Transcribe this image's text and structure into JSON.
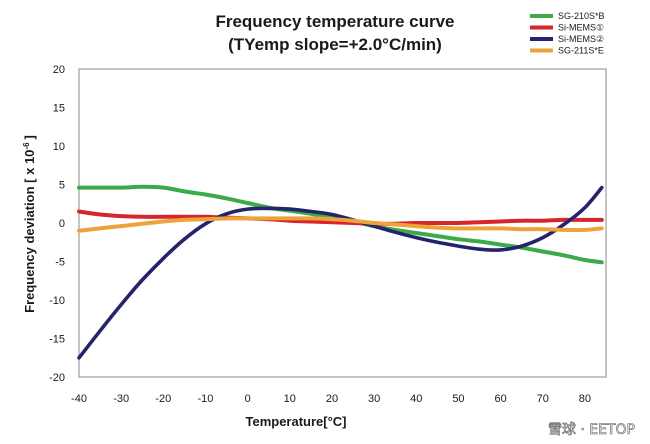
{
  "chart_data": {
    "type": "line",
    "title_lines": [
      "Frequency temperature curve",
      "(TYemp slope=+2.0°C/min)"
    ],
    "xlabel": "Temperature[°C]",
    "ylabel": "Frequency deviation [ x 10",
    "ylabel_exponent": "-6",
    "ylabel_suffix": "]",
    "xlim": [
      -40,
      85
    ],
    "ylim": [
      -20,
      20
    ],
    "xticks": [
      -40,
      -30,
      -20,
      -10,
      0,
      10,
      20,
      30,
      40,
      50,
      60,
      70,
      80
    ],
    "yticks": [
      -20,
      -15,
      -10,
      -5,
      0,
      5,
      10,
      15,
      20
    ],
    "grid": false,
    "legend_position": "top-right",
    "series": [
      {
        "name": "SG-210S*B",
        "color": "#3daa4a",
        "x": [
          -40,
          -35,
          -30,
          -25,
          -20,
          -15,
          -10,
          -5,
          0,
          5,
          10,
          15,
          20,
          25,
          30,
          35,
          40,
          45,
          50,
          55,
          60,
          65,
          70,
          75,
          80,
          84
        ],
        "y": [
          4.6,
          4.6,
          4.6,
          4.7,
          4.6,
          4.1,
          3.7,
          3.2,
          2.6,
          2.0,
          1.6,
          1.2,
          0.7,
          0.2,
          -0.4,
          -0.9,
          -1.3,
          -1.7,
          -2.1,
          -2.4,
          -2.8,
          -3.2,
          -3.7,
          -4.2,
          -4.8,
          -5.1
        ]
      },
      {
        "name": "Si-MEMS①",
        "color": "#d6262c",
        "x": [
          -40,
          -35,
          -30,
          -25,
          -20,
          -15,
          -10,
          -5,
          0,
          5,
          10,
          15,
          20,
          25,
          30,
          35,
          40,
          45,
          50,
          55,
          60,
          65,
          70,
          75,
          80,
          84
        ],
        "y": [
          1.5,
          1.1,
          0.9,
          0.8,
          0.8,
          0.8,
          0.8,
          0.7,
          0.6,
          0.5,
          0.3,
          0.2,
          0.1,
          0.0,
          -0.1,
          -0.1,
          0.0,
          0.0,
          0.0,
          0.1,
          0.2,
          0.3,
          0.3,
          0.4,
          0.4,
          0.4
        ]
      },
      {
        "name": "Si-MEMS②",
        "color": "#23236e",
        "x": [
          -40,
          -35,
          -30,
          -25,
          -20,
          -15,
          -10,
          -5,
          0,
          5,
          10,
          15,
          20,
          25,
          30,
          35,
          40,
          45,
          50,
          55,
          60,
          65,
          70,
          75,
          80,
          84
        ],
        "y": [
          -17.5,
          -14.0,
          -10.6,
          -7.4,
          -4.6,
          -2.1,
          -0.1,
          1.2,
          1.8,
          1.9,
          1.8,
          1.5,
          1.1,
          0.4,
          -0.4,
          -1.2,
          -1.9,
          -2.5,
          -3.0,
          -3.4,
          -3.5,
          -3.0,
          -1.9,
          -0.2,
          2.0,
          4.6
        ]
      },
      {
        "name": "SG-211S*E",
        "color": "#eda23a",
        "x": [
          -40,
          -35,
          -30,
          -25,
          -20,
          -15,
          -10,
          -5,
          0,
          5,
          10,
          15,
          20,
          25,
          30,
          35,
          40,
          45,
          50,
          55,
          60,
          65,
          70,
          75,
          80,
          84
        ],
        "y": [
          -1.0,
          -0.7,
          -0.4,
          -0.1,
          0.2,
          0.4,
          0.5,
          0.6,
          0.6,
          0.6,
          0.6,
          0.6,
          0.5,
          0.3,
          0.0,
          -0.2,
          -0.4,
          -0.6,
          -0.7,
          -0.7,
          -0.7,
          -0.8,
          -0.8,
          -0.9,
          -0.9,
          -0.7
        ]
      }
    ]
  },
  "watermark": {
    "text": "雪球 · EETOP"
  }
}
